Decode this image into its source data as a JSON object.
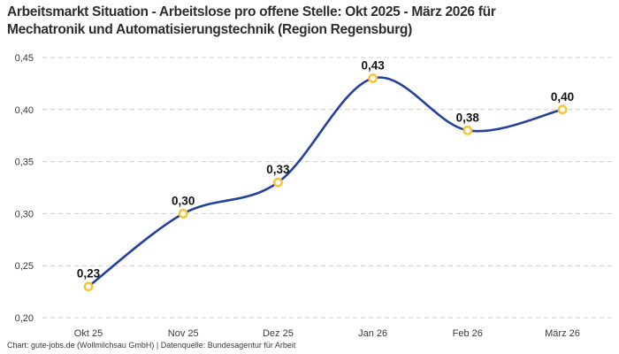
{
  "header": {
    "title_lines": [
      "Arbeitsmarkt Situation - Arbeitslose pro offene Stelle: Okt 2025 - März 2026 für",
      "Mechatronik und Automatisierungstechnik (Region Regensburg)"
    ]
  },
  "chart_data": {
    "type": "line",
    "title": "Arbeitsmarkt Situation - Arbeitslose pro offene Stelle: Okt 2025 - März 2026 für Mechatronik und Automatisierungstechnik (Region Regensburg)",
    "categories": [
      "Okt 25",
      "Nov 25",
      "Dez 25",
      "Jan 26",
      "Feb 26",
      "März 26"
    ],
    "values": [
      0.23,
      0.3,
      0.33,
      0.43,
      0.38,
      0.4
    ],
    "point_labels": [
      "0,23",
      "0,30",
      "0,33",
      "0,43",
      "0,38",
      "0,40"
    ],
    "y_ticks": [
      {
        "value": 0.2,
        "label": "0,20"
      },
      {
        "value": 0.25,
        "label": "0,25"
      },
      {
        "value": 0.3,
        "label": "0,30"
      },
      {
        "value": 0.35,
        "label": "0,35"
      },
      {
        "value": 0.4,
        "label": "0,40"
      },
      {
        "value": 0.45,
        "label": "0,45"
      }
    ],
    "ylim": [
      0.2,
      0.45
    ],
    "xlabel": "",
    "ylabel": "",
    "grid": "horizontal-dashed",
    "legend": "none",
    "curve": "smooth-spline",
    "line_color": "#24409e",
    "marker_color": "#f9c233",
    "marker_fill": "#ffffff",
    "gridline_color": "#cccccc",
    "background": "#ffffff"
  },
  "footer": {
    "credit": "Chart: gute-jobs.de (Wollmilchsau GmbH) | Datenquelle: Bundesagentur für Arbeit"
  }
}
